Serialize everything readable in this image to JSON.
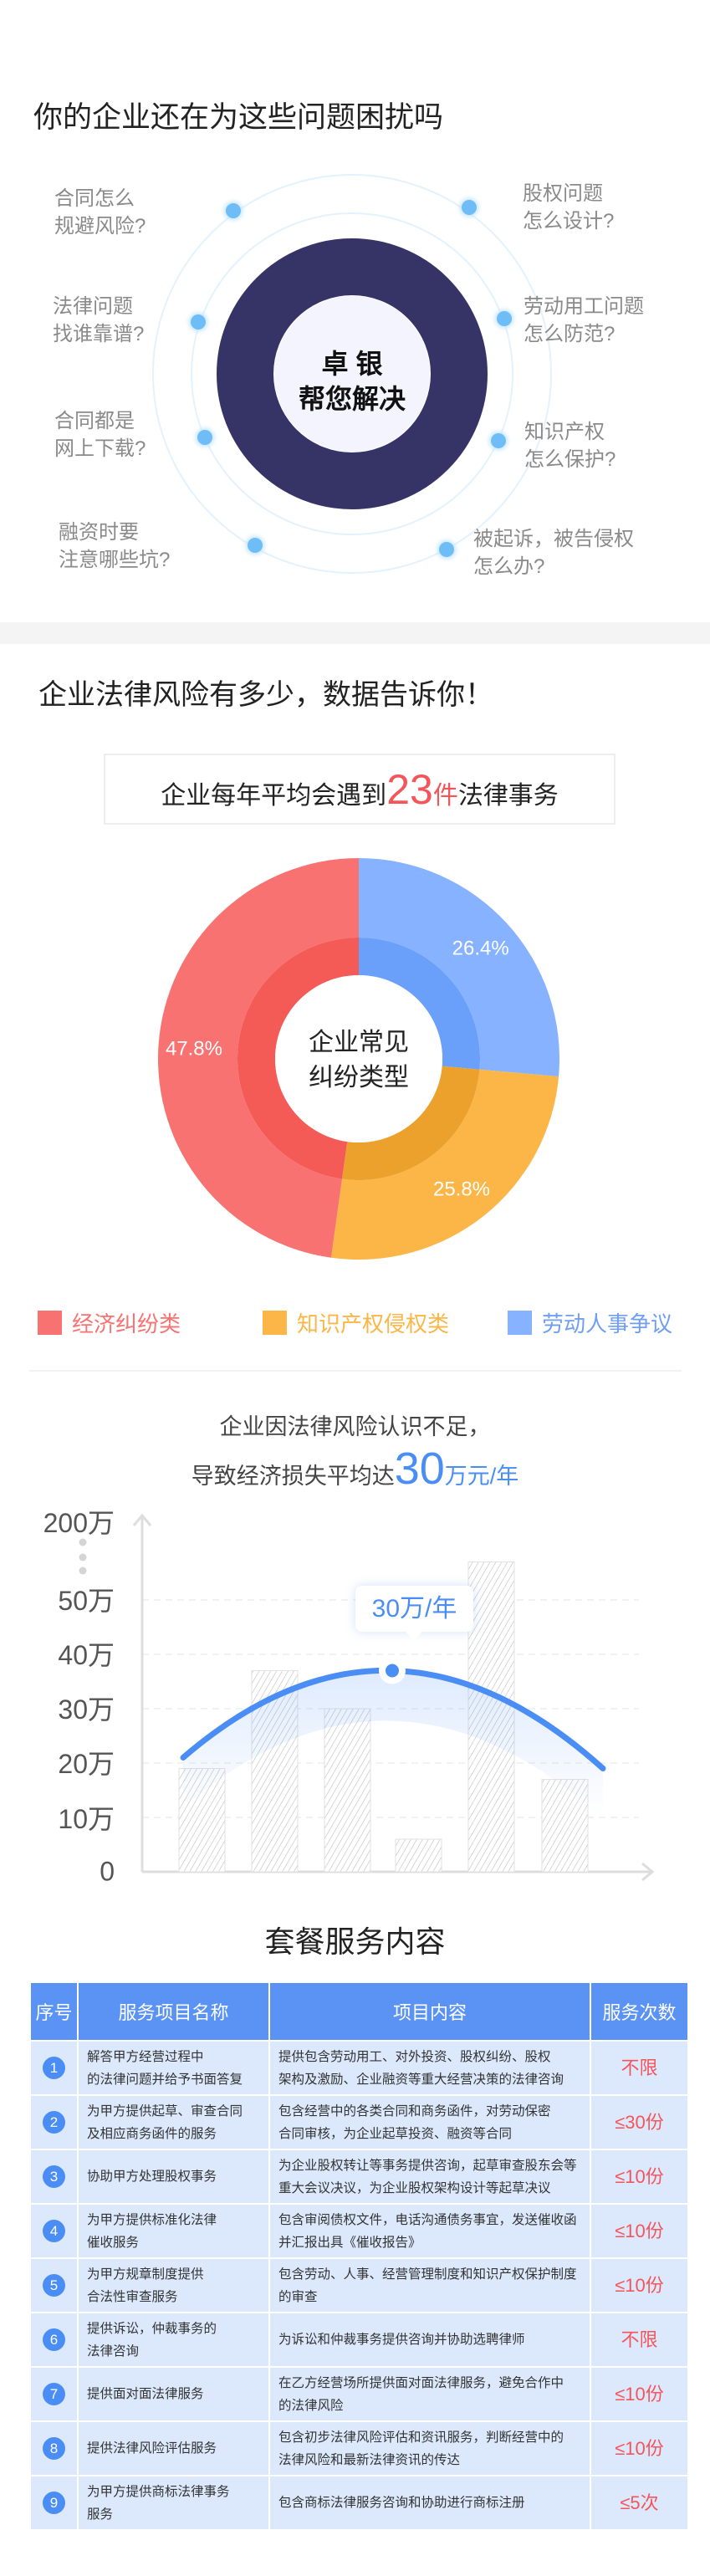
{
  "section1": {
    "title": "你的企业还在为这些问题困扰吗",
    "center_line1": "卓 银",
    "center_line2": "帮您解决",
    "questions_left": [
      "合同怎么\n规避风险?",
      "法律问题\n找谁靠谱?",
      "合同都是\n网上下载?",
      "融资时要\n注意哪些坑?"
    ],
    "questions_right": [
      "股权问题\n怎么设计?",
      "劳动用工问题\n怎么防范?",
      "知识产权\n怎么保护?",
      "被起诉，被告侵权\n怎么办?"
    ],
    "colors": {
      "ring": "#363466",
      "dot": "#6fbdf7"
    }
  },
  "section2": {
    "title": "企业法律风险有多少，数据告诉你！",
    "stat_prefix": "企业每年平均会遇到",
    "stat_number": "23",
    "stat_unit": "件",
    "stat_suffix": "法律事务"
  },
  "chart_data": [
    {
      "type": "pie",
      "center_label": "企业常见\n纠纷类型",
      "slices": [
        {
          "name": "劳动人事争议",
          "value": 26.4,
          "label": "26.4%",
          "color": "#87b2ff",
          "inner_color": "#6aa0fa"
        },
        {
          "name": "知识产权侵权类",
          "value": 25.8,
          "label": "25.8%",
          "color": "#fbb647",
          "inner_color": "#eba12c"
        },
        {
          "name": "经济纠纷类",
          "value": 47.8,
          "label": "47.8%",
          "color": "#f87272",
          "inner_color": "#f45a56"
        }
      ],
      "legend": [
        "经济纠纷类",
        "知识产权侵权类",
        "劳动人事争议"
      ],
      "legend_placement": "bottom"
    },
    {
      "type": "bar",
      "yticks": [
        "200万",
        "50万",
        "40万",
        "30万",
        "20万",
        "10万",
        "0"
      ],
      "ylim": [
        0,
        50
      ],
      "axis_break": "50万-200万",
      "values": [
        19,
        37,
        30,
        6,
        57,
        17
      ],
      "trend_line": [
        21,
        37,
        19
      ],
      "annotation": "30万/年",
      "grid": "dashed horizontal"
    }
  ],
  "section3": {
    "line1": "企业因法律风险认识不足，",
    "line2_prefix": "导致经济损失平均达",
    "line2_number": "30",
    "line2_unit": "万元/年"
  },
  "services": {
    "title": "套餐服务内容",
    "headers": [
      "序号",
      "服务项目名称",
      "项目内容",
      "服务次数"
    ],
    "rows": [
      {
        "no": "1",
        "name": "解答甲方经营过程中\n的法律问题并给予书面答复",
        "content": "提供包含劳动用工、对外投资、股权纠纷、股权\n架构及激励、企业融资等重大经营决策的法律咨询",
        "count": "不限"
      },
      {
        "no": "2",
        "name": "为甲方提供起草、审查合同\n及相应商务函件的服务",
        "content": "包含经营中的各类合同和商务函件，对劳动保密\n合同审核，为企业起草投资、融资等合同",
        "count": "≤30份"
      },
      {
        "no": "3",
        "name": "协助甲方处理股权事务",
        "content": "为企业股权转让等事务提供咨询，起草审查股东会等\n重大会议决议，为企业股权架构设计等起草决议",
        "count": "≤10份"
      },
      {
        "no": "4",
        "name": "为甲方提供标准化法律\n催收服务",
        "content": "包含审阅债权文件，电话沟通债务事宜，发送催收函\n并汇报出具《催收报告》",
        "count": "≤10份"
      },
      {
        "no": "5",
        "name": "为甲方规章制度提供\n合法性审查服务",
        "content": "包含劳动、人事、经营管理制度和知识产权保护制度\n的审查",
        "count": "≤10份"
      },
      {
        "no": "6",
        "name": "提供诉讼，仲裁事务的\n法律咨询",
        "content": "为诉讼和仲裁事务提供咨询并协助选聘律师",
        "count": "不限"
      },
      {
        "no": "7",
        "name": "提供面对面法律服务",
        "content": "在乙方经营场所提供面对面法律服务，避免合作中\n的法律风险",
        "count": "≤10份"
      },
      {
        "no": "8",
        "name": "提供法律风险评估服务",
        "content": "包含初步法律风险评估和资讯服务，判断经营中的\n法律风险和最新法律资讯的传达",
        "count": "≤10份"
      },
      {
        "no": "9",
        "name": "为甲方提供商标法律事务\n服务",
        "content": "包含商标法律服务咨询和协助进行商标注册",
        "count": "≤5次"
      }
    ]
  }
}
